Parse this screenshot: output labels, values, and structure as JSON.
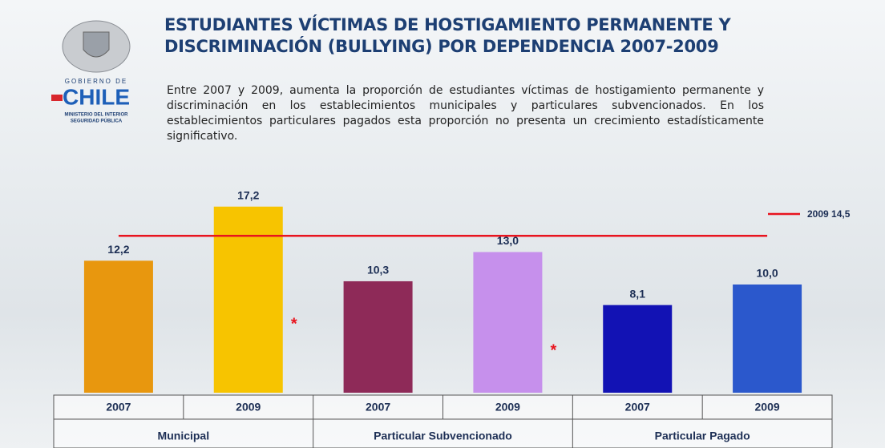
{
  "header": {
    "logo": {
      "line1": "GOBIERNO DE",
      "line2": "CHILE",
      "line3": "MINISTERIO DEL INTERIOR",
      "line4": "SEGURIDAD PÚBLICA"
    },
    "title": [
      "ESTUDIANTES VÍCTIMAS DE HOSTIGAMIENTO PERMANENTE Y",
      "DISCRIMINACIÓN (BULLYING) POR DEPENDENCIA 2007-2009"
    ],
    "description": "Entre 2007 y 2009, aumenta la proporción de estudiantes víctimas de hostigamiento permanente y discriminación en los establecimientos municipales y particulares subvencionados. En los establecimientos particulares pagados esta proporción no presenta un crecimiento estadísticamente significativo."
  },
  "chart_data": {
    "type": "bar",
    "categories": [
      "2007",
      "2009",
      "2007",
      "2009",
      "2007",
      "2009"
    ],
    "groups": [
      "Municipal",
      "Particular Subvencionado",
      "Particular Pagado"
    ],
    "values": [
      12.2,
      17.2,
      10.3,
      13.0,
      8.1,
      10.0
    ],
    "value_labels": [
      "12,2",
      "17,2",
      "10,3",
      "13,0",
      "8,1",
      "10,0"
    ],
    "colors": [
      "#e8970e",
      "#f7c400",
      "#8e2a58",
      "#c690ec",
      "#1212b4",
      "#2b58cc"
    ],
    "significance": [
      null,
      "*",
      null,
      "*",
      null,
      null
    ],
    "reference_line": {
      "value": 14.5,
      "label": "2009 14,5",
      "color": "#e8141e"
    },
    "ylim": [
      0,
      20
    ]
  }
}
